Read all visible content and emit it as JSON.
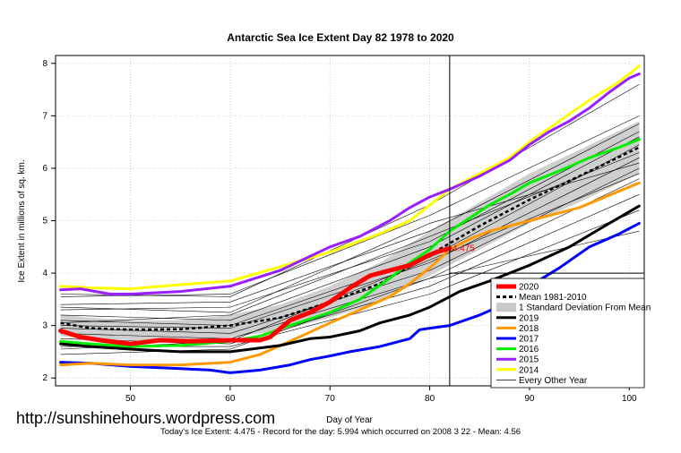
{
  "chart_data": {
    "type": "line",
    "title": "Antarctic Sea Ice Extent Day 82 1978 to 2020",
    "xlabel": "Day of Year",
    "ylabel": "Ice Extent in millions of sq. km.",
    "xlim": [
      42.5,
      101.5
    ],
    "ylim": [
      1.85,
      8.15
    ],
    "xticks": [
      50,
      60,
      70,
      80,
      90,
      100
    ],
    "yticks": [
      2,
      3,
      4,
      5,
      6,
      7,
      8
    ],
    "grid": true,
    "legend_position": "bottom-right",
    "current_day": 82,
    "current_value_label": "4.475",
    "mean": {
      "x": [
        43,
        46,
        50,
        55,
        60,
        65,
        70,
        75,
        80,
        85,
        90,
        95,
        101
      ],
      "values": [
        3.05,
        2.95,
        2.92,
        2.93,
        3.0,
        3.15,
        3.45,
        3.8,
        4.35,
        4.9,
        5.4,
        5.85,
        6.4
      ]
    },
    "std_band": {
      "x": [
        43,
        46,
        50,
        55,
        60,
        65,
        70,
        75,
        80,
        85,
        90,
        95,
        101
      ],
      "upper": [
        3.2,
        3.15,
        3.1,
        3.1,
        3.2,
        3.4,
        3.75,
        4.2,
        4.8,
        5.35,
        5.9,
        6.35,
        6.9
      ],
      "lower": [
        2.8,
        2.75,
        2.72,
        2.72,
        2.78,
        2.9,
        3.15,
        3.45,
        3.95,
        4.45,
        4.95,
        5.35,
        5.9
      ]
    },
    "series": [
      {
        "name": "2020",
        "color": "#ff0000",
        "width": 5,
        "x": [
          43,
          45,
          47,
          50,
          53,
          56,
          60,
          63,
          64,
          66,
          68,
          70,
          72,
          74,
          76,
          78,
          80,
          81,
          82
        ],
        "values": [
          2.9,
          2.78,
          2.72,
          2.65,
          2.72,
          2.7,
          2.72,
          2.72,
          2.78,
          3.1,
          3.25,
          3.45,
          3.72,
          3.95,
          4.05,
          4.15,
          4.35,
          4.42,
          4.475
        ]
      },
      {
        "name": "2019",
        "color": "#000000",
        "width": 3,
        "x": [
          43,
          46,
          50,
          55,
          60,
          65,
          68,
          70,
          73,
          75,
          78,
          80,
          83,
          86,
          90,
          94,
          98,
          101
        ],
        "values": [
          2.65,
          2.6,
          2.55,
          2.5,
          2.5,
          2.62,
          2.75,
          2.78,
          2.9,
          3.05,
          3.2,
          3.35,
          3.65,
          3.85,
          4.15,
          4.5,
          4.95,
          5.28
        ]
      },
      {
        "name": "2018",
        "color": "#ff9900",
        "width": 3,
        "x": [
          43,
          46,
          50,
          55,
          60,
          63,
          66,
          70,
          73,
          76,
          78,
          80,
          82,
          84,
          86,
          90,
          95,
          101
        ],
        "values": [
          2.25,
          2.28,
          2.25,
          2.25,
          2.3,
          2.45,
          2.7,
          3.05,
          3.3,
          3.55,
          3.8,
          4.1,
          4.45,
          4.65,
          4.8,
          5.0,
          5.25,
          5.72
        ]
      },
      {
        "name": "2017",
        "color": "#0000ff",
        "width": 3,
        "x": [
          43,
          46,
          50,
          55,
          58,
          60,
          63,
          66,
          68,
          70,
          72,
          75,
          78,
          79,
          80,
          82,
          85,
          88,
          90,
          93,
          96,
          99,
          101
        ],
        "values": [
          2.3,
          2.28,
          2.22,
          2.18,
          2.15,
          2.1,
          2.15,
          2.25,
          2.35,
          2.42,
          2.5,
          2.6,
          2.75,
          2.92,
          2.95,
          3.0,
          3.2,
          3.45,
          3.75,
          4.1,
          4.5,
          4.75,
          4.95
        ]
      },
      {
        "name": "2016",
        "color": "#00ee00",
        "width": 3,
        "x": [
          43,
          46,
          50,
          55,
          60,
          63,
          66,
          70,
          73,
          76,
          78,
          80,
          82,
          84,
          86,
          88,
          90,
          93,
          96,
          99,
          101
        ],
        "values": [
          2.7,
          2.65,
          2.6,
          2.62,
          2.7,
          2.8,
          3.0,
          3.25,
          3.5,
          3.9,
          4.2,
          4.45,
          4.8,
          5.05,
          5.3,
          5.5,
          5.72,
          5.95,
          6.2,
          6.4,
          6.55
        ]
      },
      {
        "name": "2015",
        "color": "#9a1eff",
        "width": 3,
        "x": [
          43,
          45,
          48,
          50,
          55,
          60,
          65,
          70,
          73,
          76,
          78,
          80,
          82,
          85,
          88,
          90,
          92,
          94,
          96,
          98,
          100,
          101
        ],
        "values": [
          3.68,
          3.7,
          3.6,
          3.6,
          3.65,
          3.75,
          4.05,
          4.5,
          4.7,
          5.0,
          5.25,
          5.45,
          5.6,
          5.85,
          6.15,
          6.45,
          6.7,
          6.9,
          7.15,
          7.45,
          7.72,
          7.8
        ]
      },
      {
        "name": "2014",
        "color": "#ffff00",
        "width": 3,
        "x": [
          43,
          46,
          50,
          55,
          60,
          65,
          70,
          75,
          78,
          80,
          82,
          85,
          88,
          90,
          93,
          96,
          99,
          101
        ],
        "values": [
          3.75,
          3.72,
          3.7,
          3.78,
          3.85,
          4.12,
          4.4,
          4.75,
          5.0,
          5.3,
          5.6,
          5.9,
          6.2,
          6.5,
          6.9,
          7.3,
          7.65,
          7.95
        ]
      }
    ],
    "other_years": [
      {
        "x": [
          43,
          60,
          80,
          101
        ],
        "values": [
          3.4,
          3.45,
          4.8,
          6.85
        ]
      },
      {
        "x": [
          43,
          60,
          80,
          101
        ],
        "values": [
          3.3,
          3.35,
          4.6,
          6.7
        ]
      },
      {
        "x": [
          43,
          60,
          80,
          101
        ],
        "values": [
          3.2,
          3.1,
          4.5,
          6.6
        ]
      },
      {
        "x": [
          43,
          60,
          80,
          101
        ],
        "values": [
          3.1,
          3.0,
          4.3,
          6.45
        ]
      },
      {
        "x": [
          43,
          60,
          80,
          101
        ],
        "values": [
          3.0,
          2.95,
          4.2,
          6.2
        ]
      },
      {
        "x": [
          43,
          60,
          80,
          101
        ],
        "values": [
          2.95,
          2.85,
          4.05,
          6.0
        ]
      },
      {
        "x": [
          43,
          60,
          80,
          101
        ],
        "values": [
          2.85,
          2.75,
          3.9,
          5.8
        ]
      },
      {
        "x": [
          43,
          60,
          80,
          101
        ],
        "values": [
          2.75,
          2.65,
          3.75,
          5.5
        ]
      },
      {
        "x": [
          43,
          60,
          80,
          101
        ],
        "values": [
          2.6,
          2.6,
          3.6,
          5.2
        ]
      },
      {
        "x": [
          43,
          60,
          80,
          101
        ],
        "values": [
          2.45,
          2.55,
          3.9,
          4.8
        ]
      },
      {
        "x": [
          43,
          60,
          80,
          101
        ],
        "values": [
          3.55,
          3.6,
          5.1,
          7.0
        ]
      },
      {
        "x": [
          43,
          60,
          80,
          101
        ],
        "values": [
          3.6,
          3.55,
          5.3,
          7.6
        ]
      },
      {
        "x": [
          43,
          60,
          80,
          101
        ],
        "values": [
          3.35,
          3.25,
          4.95,
          6.1
        ]
      },
      {
        "x": [
          43,
          60,
          80,
          101
        ],
        "values": [
          2.55,
          2.7,
          4.25,
          5.9
        ]
      },
      {
        "x": [
          43,
          60,
          80,
          101
        ],
        "values": [
          3.05,
          3.2,
          4.7,
          6.3
        ]
      }
    ],
    "legend": [
      {
        "label": "2020",
        "color": "#ff0000",
        "style": "thick"
      },
      {
        "label": "Mean 1981-2010",
        "color": "#000000",
        "style": "dashed"
      },
      {
        "label": "1 Standard Deviation From Mean",
        "color": "#c8c8c8",
        "style": "box"
      },
      {
        "label": "2019",
        "color": "#000000",
        "style": "line"
      },
      {
        "label": "2018",
        "color": "#ff9900",
        "style": "line"
      },
      {
        "label": "2017",
        "color": "#0000ff",
        "style": "line"
      },
      {
        "label": "2016",
        "color": "#00ee00",
        "style": "line"
      },
      {
        "label": "2015",
        "color": "#9a1eff",
        "style": "line"
      },
      {
        "label": "2014",
        "color": "#ffff00",
        "style": "line"
      },
      {
        "label": "Every Other Year",
        "color": "#000000",
        "style": "thin"
      }
    ]
  },
  "watermark": "http://sunshinehours.wordpress.com",
  "footer": "Today's Ice Extent: 4.475  - Record for the day: 5.994 which occurred on 2008 3 22  - Mean: 4.56"
}
